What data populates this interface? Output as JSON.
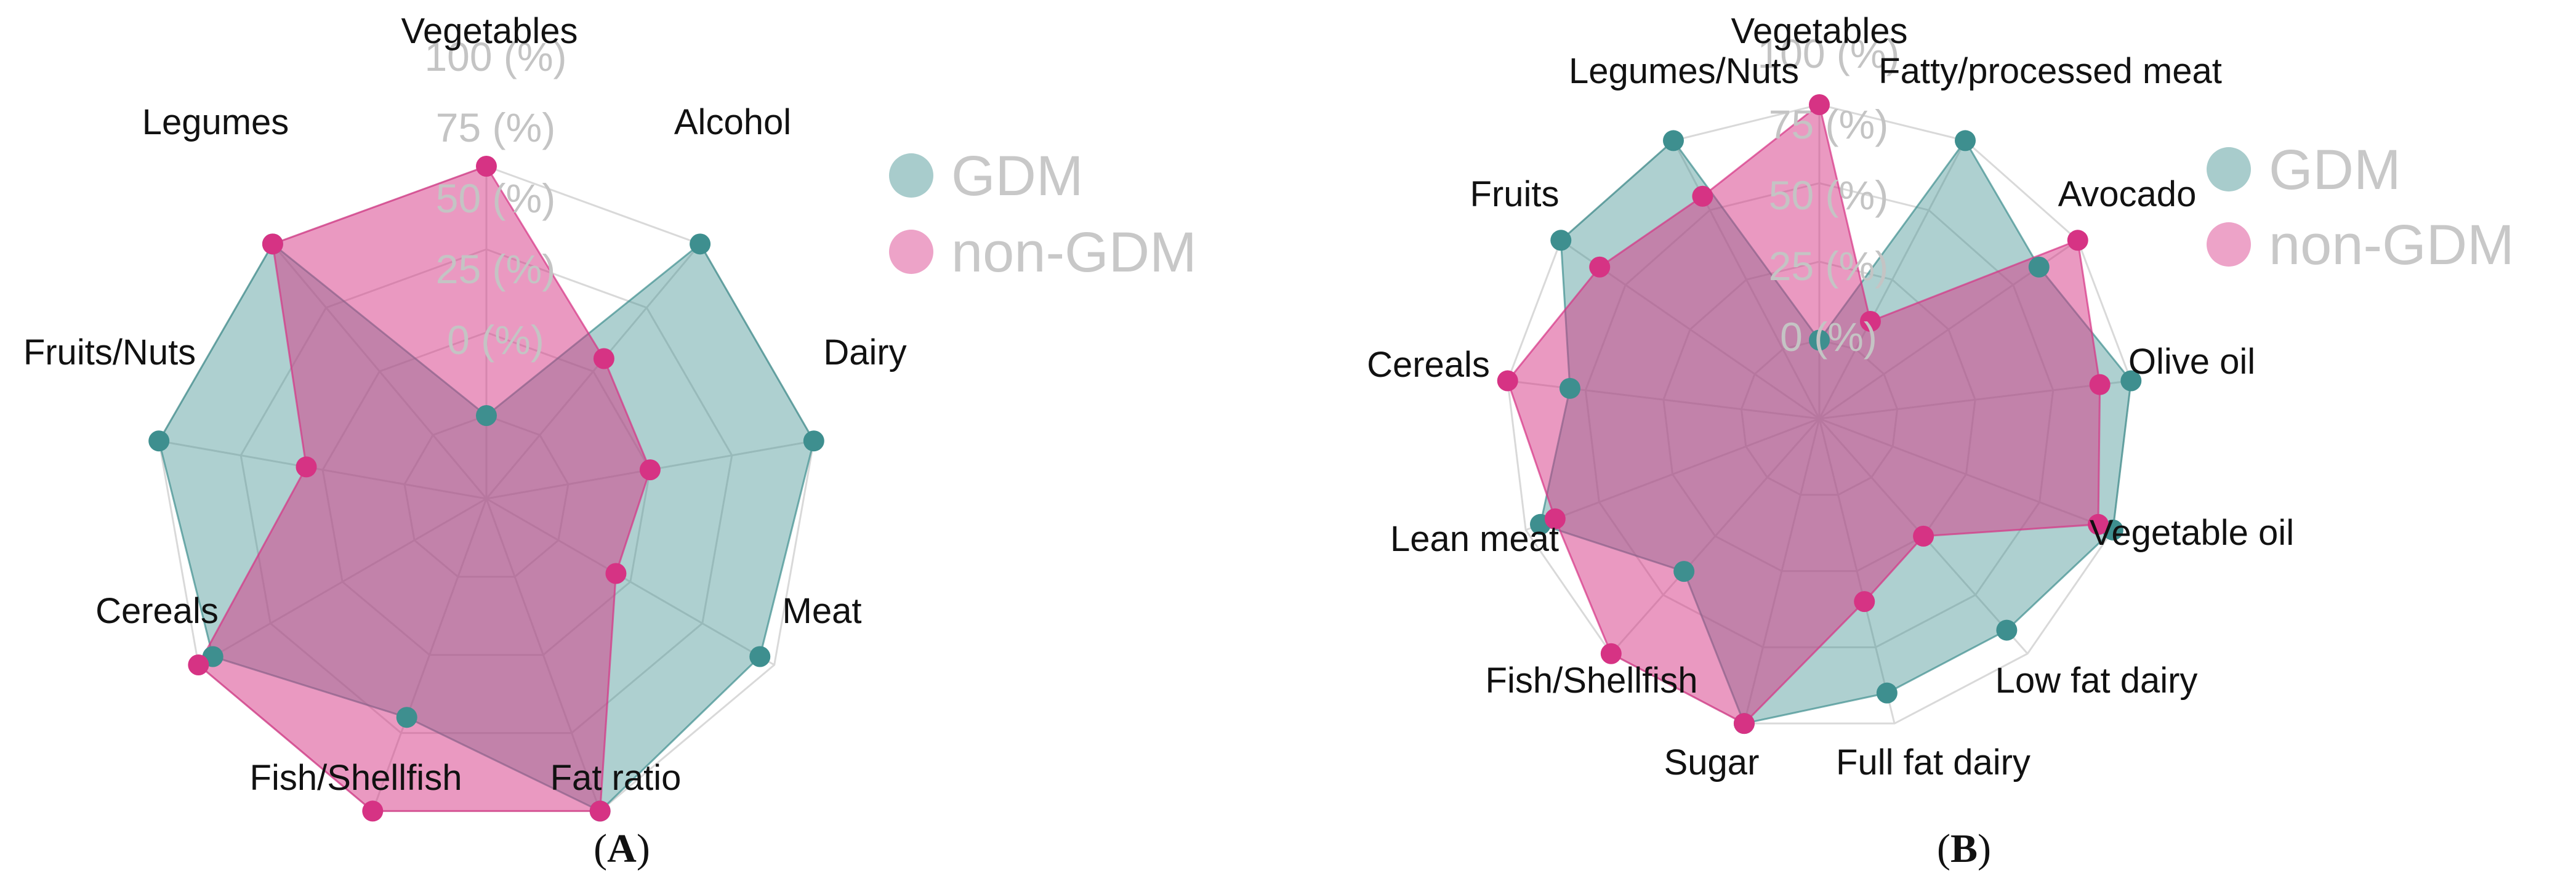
{
  "chart_data": [
    {
      "type": "radar",
      "panel_label": "A",
      "rlim": [
        0,
        100
      ],
      "r_ticks": [
        "0 (%)",
        "25 (%)",
        "50 (%)",
        "75 (%)",
        "100 (%)"
      ],
      "grid": true,
      "legend_position": "right",
      "categories": [
        "Vegetables",
        "Alcohol",
        "Dairy",
        "Meat",
        "Fat ratio",
        "Fish/Shellfish",
        "Cereals",
        "Fruits/Nuts",
        "Legumes"
      ],
      "series": [
        {
          "name": "GDM",
          "color": "#3e8f8f",
          "values": [
            25,
            100,
            100,
            95,
            100,
            70,
            95,
            100,
            100
          ]
        },
        {
          "name": "non-GDM",
          "color": "#d63384",
          "values": [
            100,
            55,
            50,
            45,
            100,
            100,
            100,
            55,
            100
          ]
        }
      ]
    },
    {
      "type": "radar",
      "panel_label": "B",
      "rlim": [
        0,
        100
      ],
      "r_ticks": [
        "0 (%)",
        "25 (%)",
        "50 (%)",
        "75 (%)",
        "100 (%)"
      ],
      "grid": true,
      "legend_position": "right",
      "categories": [
        "Vegetables",
        "Fatty/processed meat",
        "Avocado",
        "Olive oil",
        "Vegetable oil",
        "Low fat dairy",
        "Full fat dairy",
        "Sugar",
        "Fish/Shellfish",
        "Lean meat",
        "Cereals",
        "Fruits",
        "Legumes/Nuts"
      ],
      "series": [
        {
          "name": "GDM",
          "color": "#3e8f8f",
          "values": [
            25,
            100,
            85,
            100,
            100,
            90,
            90,
            100,
            65,
            95,
            80,
            100,
            100
          ]
        },
        {
          "name": "non-GDM",
          "color": "#d63384",
          "values": [
            100,
            35,
            100,
            90,
            95,
            50,
            60,
            100,
            100,
            90,
            100,
            85,
            80
          ]
        }
      ]
    }
  ]
}
